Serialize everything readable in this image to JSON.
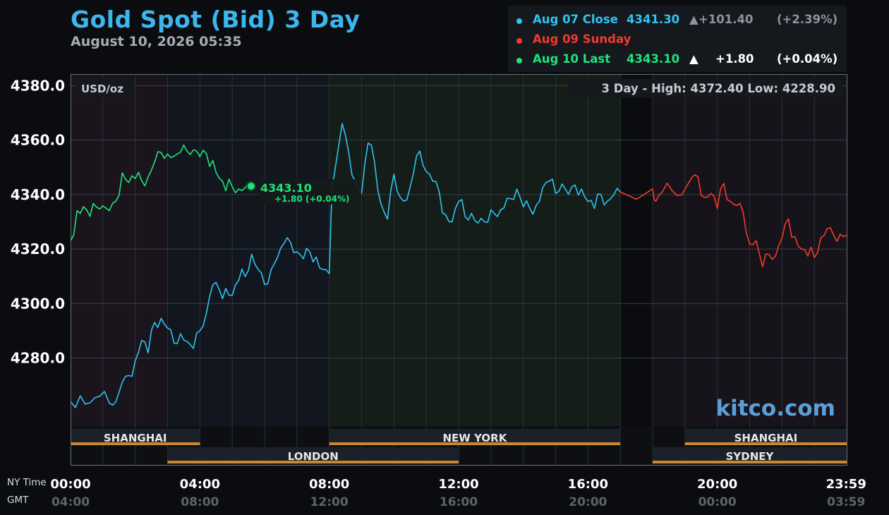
{
  "header": {
    "title": "Gold Spot (Bid) 3 Day",
    "timestamp": "August 10, 2026 05:35"
  },
  "legend": [
    {
      "label": "Aug 07 Close",
      "value": "4341.30",
      "arrow": "▲",
      "change": "+101.40",
      "pct": "(+2.39%)",
      "color": "#2fc3f0",
      "value_color": "#2fc3f0",
      "change_color": "#8f939a"
    },
    {
      "label": "Aug 09 Sunday",
      "value": "",
      "arrow": "",
      "change": "",
      "pct": "",
      "color": "#f23a2c",
      "value_color": "#f23a2c",
      "change_color": "#8f939a"
    },
    {
      "label": "Aug 10 Last",
      "value": "4343.10",
      "arrow": "▲",
      "change": "+1.80",
      "pct": "(+0.04%)",
      "color": "#1fe37a",
      "value_color": "#1fe37a",
      "change_color": "#ffffff"
    }
  ],
  "plot": {
    "unit_label": "USD/oz",
    "range_label": "3 Day - High: 4372.40  Low: 4228.90",
    "watermark": "kitco.com",
    "annotation_price": "4343.10",
    "annotation_change": "+1.80 (+0.04%)"
  },
  "axis_titles": {
    "ny": "NY Time",
    "gmt": "GMT"
  },
  "chart_data": {
    "type": "line",
    "y_unit": "USD/oz",
    "ylim": [
      4255,
      4384
    ],
    "xlim": [
      0,
      24
    ],
    "y_ticks": [
      4380,
      4360,
      4340,
      4320,
      4300,
      4280
    ],
    "y_tick_labels": [
      "4380.0",
      "4360.0",
      "4340.0",
      "4320.0",
      "4300.0",
      "4280.0"
    ],
    "x_ticks": [
      0,
      4,
      8,
      12,
      16,
      20,
      23.983
    ],
    "x_tick_labels_ny": [
      "00:00",
      "04:00",
      "08:00",
      "12:00",
      "16:00",
      "20:00",
      "23:59"
    ],
    "x_tick_labels_gmt": [
      "04:00",
      "08:00",
      "12:00",
      "16:00",
      "20:00",
      "00:00",
      "03:59"
    ],
    "high": 4372.4,
    "low": 4228.9,
    "sessions_top": [
      {
        "name": "SHANGHAI",
        "start": 0,
        "end": 4
      },
      {
        "name": "NEW YORK",
        "start": 8,
        "end": 17
      },
      {
        "name": "SHANGHAI",
        "start": 19,
        "end": 24
      }
    ],
    "sessions_bottom": [
      {
        "name": "LONDON",
        "start": 3,
        "end": 12
      },
      {
        "name": "SYDNEY",
        "start": 18,
        "end": 24
      }
    ],
    "series": [
      {
        "name": "Aug 07",
        "color": "#2fc3f0",
        "x": [
          0,
          0.3,
          0.6,
          0.9,
          1.2,
          1.4,
          1.6,
          1.8,
          2.0,
          2.2,
          2.4,
          2.6,
          2.8,
          3.0,
          3.2,
          3.4,
          3.6,
          3.8,
          4.0,
          4.2,
          4.4,
          4.6,
          4.8,
          5.0,
          5.2,
          5.4,
          5.6,
          5.8,
          6.0,
          6.2,
          6.4,
          6.6,
          6.8,
          7.0,
          7.2,
          7.4,
          7.6,
          7.8,
          8.0,
          8.1,
          8.2,
          8.4,
          8.6,
          8.8,
          9.0,
          9.2,
          9.4,
          9.6,
          9.8,
          10.0,
          10.2,
          10.4,
          10.6,
          10.8,
          11.0,
          11.2,
          11.4,
          11.6,
          11.8,
          12.0,
          12.2,
          12.4,
          12.6,
          12.8,
          13.0,
          13.2,
          13.4,
          13.6,
          13.8,
          14.0,
          14.2,
          14.4,
          14.6,
          14.8,
          15.0,
          15.2,
          15.4,
          15.6,
          15.8,
          16.0,
          16.2,
          16.4,
          16.6,
          16.8,
          17.0
        ],
        "values": [
          4264,
          4265,
          4263,
          4266,
          4264,
          4265,
          4270,
          4273,
          4279,
          4287,
          4283,
          4292,
          4294,
          4291,
          4286,
          4290,
          4285,
          4283,
          4290,
          4297,
          4308,
          4304,
          4305,
          4303,
          4309,
          4311,
          4317,
          4312,
          4307,
          4313,
          4318,
          4321,
          4322,
          4319,
          4317,
          4320,
          4316,
          4312,
          4311,
          4345,
          4352,
          4365,
          4355,
          4345,
          4341,
          4360,
          4351,
          4336,
          4331,
          4348,
          4340,
          4337,
          4347,
          4356,
          4349,
          4346,
          4340,
          4332,
          4330,
          4338,
          4333,
          4332,
          4329,
          4330,
          4335,
          4333,
          4334,
          4338,
          4342,
          4336,
          4336,
          4335,
          4342,
          4345,
          4341,
          4345,
          4339,
          4343,
          4342,
          4338,
          4336,
          4339,
          4337,
          4340,
          4341
        ]
      },
      {
        "name": "Aug 09 Sunday",
        "color": "#f23a2c",
        "x": [
          17.0,
          18.0,
          18.1,
          18.3,
          18.6,
          18.9,
          19.2,
          19.4,
          19.6,
          19.8,
          20.0,
          20.2,
          20.4,
          20.6,
          20.8,
          21.0,
          21.2,
          21.4,
          21.6,
          21.8,
          22.0,
          22.2,
          22.4,
          22.6,
          22.8,
          23.0,
          23.2,
          23.4,
          23.6,
          23.8,
          24.0
        ],
        "values": [
          4341,
          4341,
          4337,
          4341,
          4342,
          4341,
          4345,
          4346,
          4339,
          4341,
          4336,
          4343,
          4337,
          4336,
          4334,
          4323,
          4322,
          4313,
          4318,
          4318,
          4325,
          4330,
          4324,
          4320,
          4318,
          4318,
          4323,
          4327,
          4325,
          4326,
          4325
        ]
      },
      {
        "name": "Aug 10",
        "color": "#1fe37a",
        "x": [
          0,
          0.2,
          0.4,
          0.6,
          0.8,
          1.0,
          1.2,
          1.4,
          1.6,
          1.8,
          2.0,
          2.2,
          2.4,
          2.6,
          2.8,
          3.0,
          3.2,
          3.4,
          3.6,
          3.8,
          4.0,
          4.2,
          4.4,
          4.6,
          4.8,
          5.0,
          5.2,
          5.4,
          5.58
        ],
        "values": [
          4323,
          4333,
          4335,
          4332,
          4336,
          4337,
          4333,
          4337,
          4348,
          4345,
          4347,
          4344,
          4346,
          4352,
          4356,
          4356,
          4353,
          4355,
          4356,
          4357,
          4355,
          4354,
          4352,
          4346,
          4342,
          4344,
          4341,
          4342,
          4343.1
        ]
      }
    ]
  }
}
